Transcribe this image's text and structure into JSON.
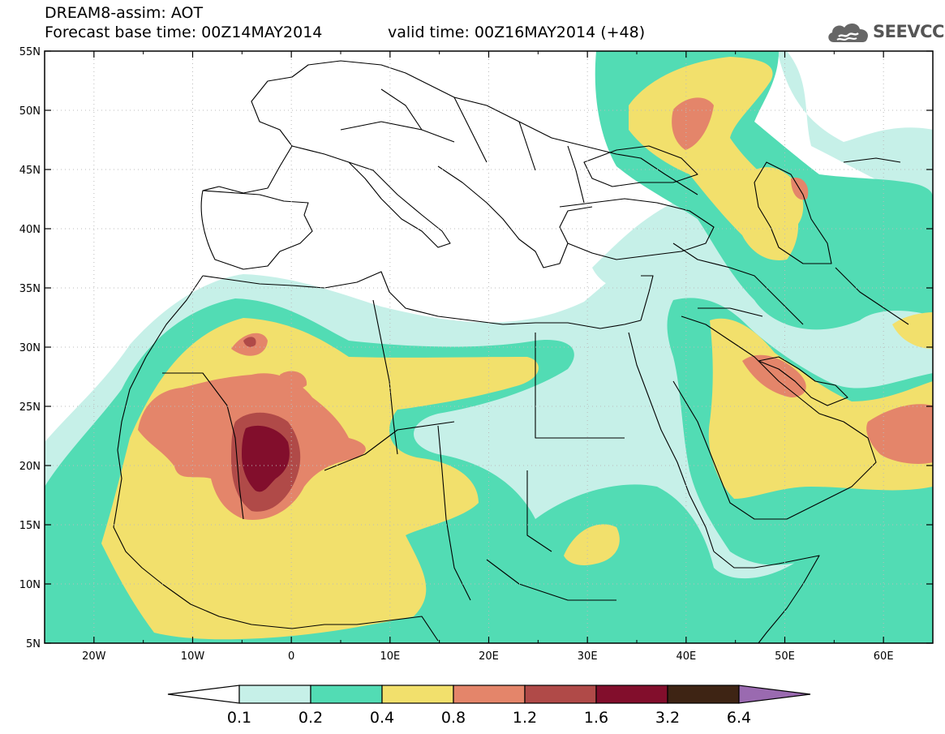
{
  "title": {
    "line1": "DREAM8-assim: AOT",
    "line2_left": "Forecast base time: 00Z14MAY2014",
    "line2_right": "valid time: 00Z16MAY2014 (+48)"
  },
  "logo": {
    "text": "SEEVCCC",
    "icon": "cloud-icon"
  },
  "colors": {
    "c01": "#c6f0e8",
    "c02": "#52dcb4",
    "c04": "#f2e06c",
    "c08": "#e4856a",
    "c12": "#b04a48",
    "c16": "#820e2c",
    "c32": "#3e2414",
    "c64": "#9a6ab0",
    "border": "#000000",
    "grid": "#bbbbbb"
  },
  "axes": {
    "x_ticks": [
      {
        "lon": -20,
        "label": "20W"
      },
      {
        "lon": -10,
        "label": "10W"
      },
      {
        "lon": 0,
        "label": "0"
      },
      {
        "lon": 10,
        "label": "10E"
      },
      {
        "lon": 20,
        "label": "20E"
      },
      {
        "lon": 30,
        "label": "30E"
      },
      {
        "lon": 40,
        "label": "40E"
      },
      {
        "lon": 50,
        "label": "50E"
      },
      {
        "lon": 60,
        "label": "60E"
      }
    ],
    "y_ticks": [
      {
        "lat": 55,
        "label": "55N"
      },
      {
        "lat": 50,
        "label": "50N"
      },
      {
        "lat": 45,
        "label": "45N"
      },
      {
        "lat": 40,
        "label": "40N"
      },
      {
        "lat": 35,
        "label": "35N"
      },
      {
        "lat": 30,
        "label": "30N"
      },
      {
        "lat": 25,
        "label": "25N"
      },
      {
        "lat": 20,
        "label": "20N"
      },
      {
        "lat": 15,
        "label": "15N"
      },
      {
        "lat": 10,
        "label": "10N"
      },
      {
        "lat": 5,
        "label": "5N"
      }
    ]
  },
  "colorbar": {
    "labels": [
      "0.1",
      "0.2",
      "0.4",
      "0.8",
      "1.2",
      "1.6",
      "3.2",
      "6.4"
    ],
    "bins": [
      {
        "color_key": "c01"
      },
      {
        "color_key": "c02"
      },
      {
        "color_key": "c04"
      },
      {
        "color_key": "c08"
      },
      {
        "color_key": "c12"
      },
      {
        "color_key": "c16"
      },
      {
        "color_key": "c32"
      }
    ],
    "low_end_color": "#ffffff",
    "high_end_color_key": "c64"
  }
}
